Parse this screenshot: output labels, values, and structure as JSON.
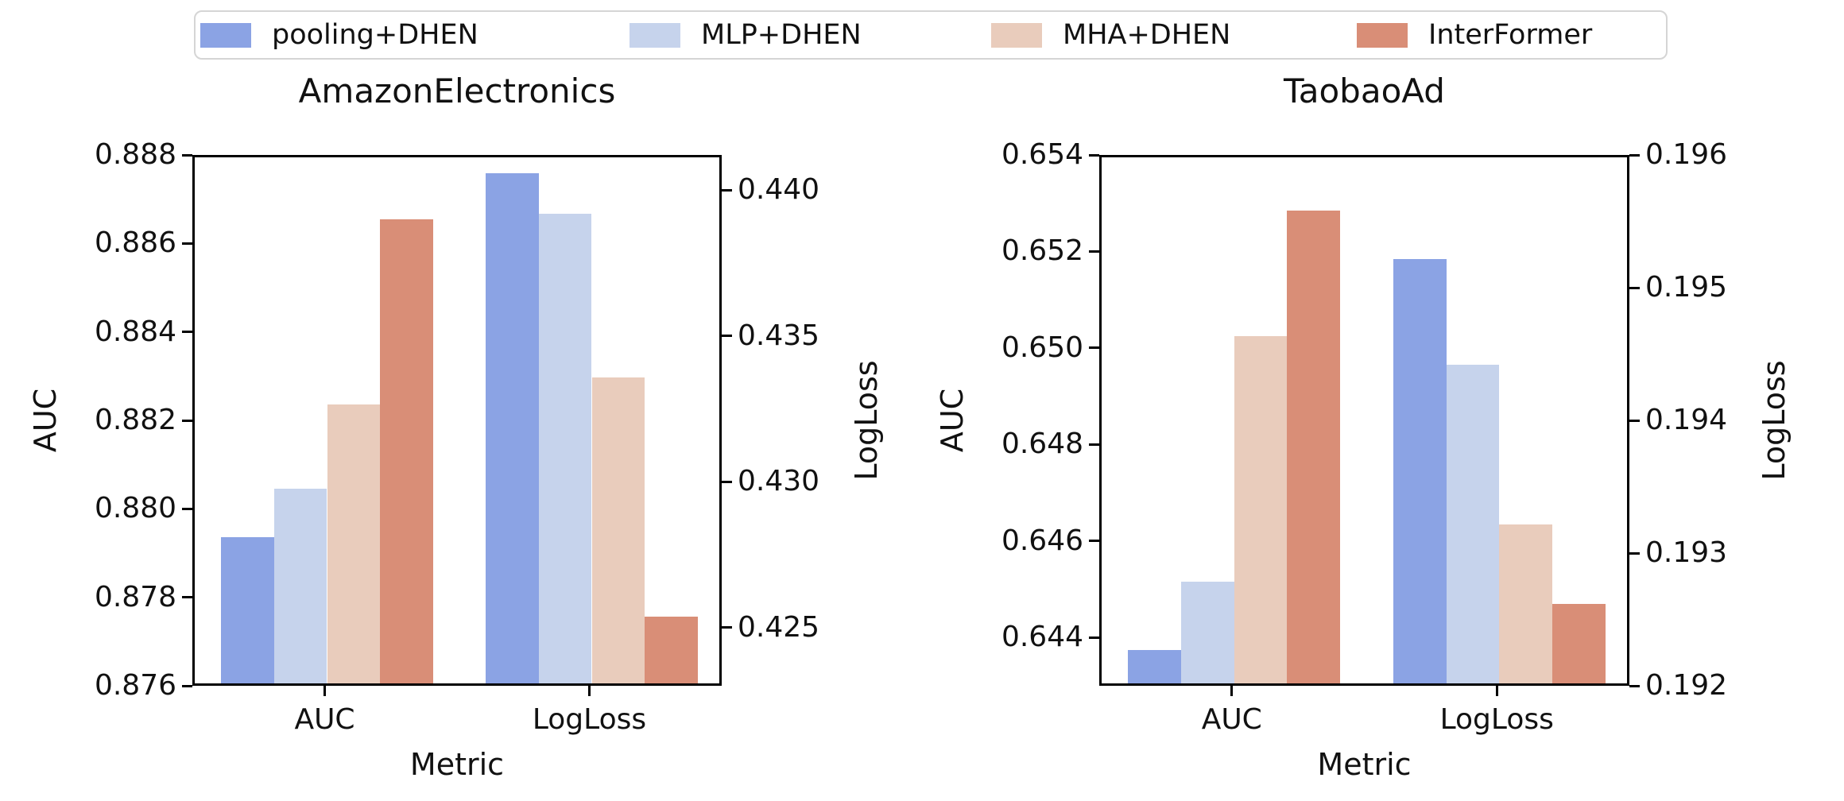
{
  "figure": {
    "background": "#ffffff",
    "spine_color": "#000000",
    "text_color": "#111111",
    "legend": {
      "border_color": "#d5d5d5",
      "position": "top",
      "entries": [
        {
          "label": "pooling+DHEN",
          "color": "#8ba3e4"
        },
        {
          "label": "MLP+DHEN",
          "color": "#c6d3ec"
        },
        {
          "label": "MHA+DHEN",
          "color": "#e9ccbc"
        },
        {
          "label": "InterFormer",
          "color": "#d98e77"
        }
      ]
    }
  },
  "chart_data": [
    {
      "type": "bar",
      "title": "AmazonElectronics",
      "xlabel": "Metric",
      "ylabel_left": "AUC",
      "ylabel_right": "LogLoss",
      "categories": [
        "AUC",
        "LogLoss"
      ],
      "category_axis": [
        "left",
        "right"
      ],
      "grid": false,
      "series": [
        {
          "name": "pooling+DHEN",
          "values": [
            0.8793,
            0.4405
          ]
        },
        {
          "name": "MLP+DHEN",
          "values": [
            0.8804,
            0.4391
          ]
        },
        {
          "name": "MHA+DHEN",
          "values": [
            0.8823,
            0.4335
          ]
        },
        {
          "name": "InterFormer",
          "values": [
            0.8865,
            0.4253
          ]
        }
      ],
      "ylim_left": [
        0.876,
        0.888
      ],
      "ylim_right": [
        0.423,
        0.4412
      ],
      "yticks_left": {
        "values": [
          0.876,
          0.878,
          0.88,
          0.882,
          0.884,
          0.886,
          0.888
        ],
        "labels": [
          "0.876",
          "0.878",
          "0.880",
          "0.882",
          "0.884",
          "0.886",
          "0.888"
        ]
      },
      "yticks_right": {
        "values": [
          0.425,
          0.43,
          0.435,
          0.44
        ],
        "labels": [
          "0.425",
          "0.430",
          "0.435",
          "0.440"
        ]
      }
    },
    {
      "type": "bar",
      "title": "TaobaoAd",
      "xlabel": "Metric",
      "ylabel_left": "AUC",
      "ylabel_right": "LogLoss",
      "categories": [
        "AUC",
        "LogLoss"
      ],
      "category_axis": [
        "left",
        "right"
      ],
      "grid": false,
      "series": [
        {
          "name": "pooling+DHEN",
          "values": [
            0.6437,
            0.1952
          ]
        },
        {
          "name": "MLP+DHEN",
          "values": [
            0.6451,
            0.1944
          ]
        },
        {
          "name": "MHA+DHEN",
          "values": [
            0.6502,
            0.1932
          ]
        },
        {
          "name": "InterFormer",
          "values": [
            0.6528,
            0.1926
          ]
        }
      ],
      "ylim_left": [
        0.643,
        0.654
      ],
      "ylim_right": [
        0.192,
        0.196
      ],
      "yticks_left": {
        "values": [
          0.644,
          0.646,
          0.648,
          0.65,
          0.652,
          0.654
        ],
        "labels": [
          "0.644",
          "0.646",
          "0.648",
          "0.650",
          "0.652",
          "0.654"
        ]
      },
      "yticks_right": {
        "values": [
          0.192,
          0.193,
          0.194,
          0.195,
          0.196
        ],
        "labels": [
          "0.192",
          "0.193",
          "0.194",
          "0.195",
          "0.196"
        ]
      }
    }
  ]
}
